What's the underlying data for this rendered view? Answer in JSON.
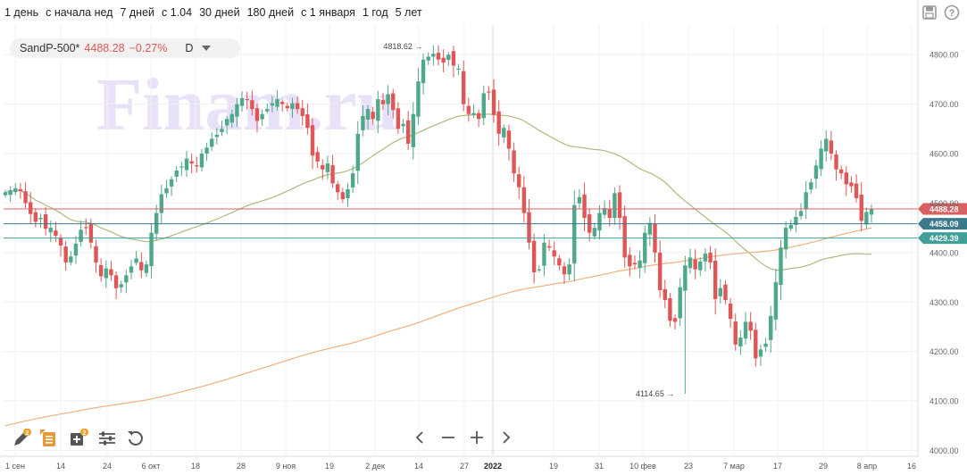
{
  "periods": [
    "1 день",
    "с начала нед",
    "7 дней",
    "с 1.04",
    "30 дней",
    "180 дней",
    "с 1 января",
    "1 год",
    "5 лет"
  ],
  "ticker": {
    "name": "SandP-500*",
    "price": "4488.28",
    "change": "−0.27%",
    "timeframe": "D"
  },
  "watermark": "Finam.ru",
  "icons": {
    "save": "save-icon",
    "help": "help-icon",
    "draw": "pencil-icon",
    "list": "list-icon",
    "add": "add-indicator-icon",
    "settings": "sliders-icon",
    "reset": "reset-icon",
    "prev": "chevron-left-icon",
    "zoom_out": "minus-icon",
    "zoom_in": "plus-icon",
    "next": "chevron-right-icon"
  },
  "badges": {
    "draw": "2",
    "add": "2"
  },
  "colors": {
    "up": "#4fa88a",
    "down": "#e05656",
    "ma_slow": "#f0b080",
    "ma_fast": "#a8bc82",
    "line_last": "#d86060",
    "line_a": "#3a7a8c",
    "line_b": "#40a098"
  },
  "chart_data": {
    "type": "candlestick",
    "title": "SandP-500*",
    "timeframe": "D",
    "ylim": [
      3990,
      4860
    ],
    "x_tick_labels": [
      "1 сен",
      "14",
      "24",
      "6 окт",
      "18",
      "28",
      "9 ноя",
      "19",
      "2 дек",
      "14",
      "27",
      "2022",
      "19",
      "31",
      "10 фев",
      "23",
      "7 мар",
      "17",
      "29",
      "8 апр",
      "16"
    ],
    "y_tick_labels": [
      "4000.00",
      "4100.00",
      "4200.00",
      "4300.00",
      "4400.00",
      "4500.00",
      "4600.00",
      "4700.00",
      "4800.00"
    ],
    "annotations": [
      {
        "text": "4818.62",
        "type": "max",
        "value": 4818.62
      },
      {
        "text": "4114.65",
        "type": "min",
        "value": 4114.65
      }
    ],
    "price_lines": [
      {
        "value": 4488.28,
        "label": "4488.28",
        "color": "#d86060"
      },
      {
        "value": 4458.09,
        "label": "4458.09",
        "color": "#3a7a8c"
      },
      {
        "value": 4429.39,
        "label": "4429.39",
        "color": "#40a098"
      }
    ],
    "closes": [
      4522,
      4526,
      4530,
      4524,
      4500,
      4478,
      4462,
      4470,
      4448,
      4450,
      4434,
      4414,
      4380,
      4392,
      4418,
      4446,
      4450,
      4420,
      4380,
      4352,
      4368,
      4354,
      4328,
      4336,
      4354,
      4372,
      4388,
      4364,
      4376,
      4440,
      4480,
      4518,
      4530,
      4548,
      4566,
      4574,
      4590,
      4580,
      4574,
      4600,
      4612,
      4630,
      4638,
      4650,
      4670,
      4680,
      4700,
      4712,
      4708,
      4690,
      4666,
      4680,
      4690,
      4702,
      4710,
      4700,
      4692,
      4702,
      4690,
      4676,
      4652,
      4596,
      4584,
      4568,
      4580,
      4540,
      4522,
      4508,
      4528,
      4560,
      4640,
      4676,
      4690,
      4670,
      4710,
      4700,
      4720,
      4688,
      4650,
      4660,
      4620,
      4680,
      4746,
      4790,
      4796,
      4802,
      4790,
      4784,
      4800,
      4778,
      4772,
      4700,
      4680,
      4682,
      4670,
      4722,
      4724,
      4678,
      4640,
      4652,
      4610,
      4560,
      4532,
      4480,
      4420,
      4360,
      4366,
      4420,
      4410,
      4392,
      4374,
      4356,
      4376,
      4496,
      4512,
      4470,
      4440,
      4450,
      4480,
      4490,
      4470,
      4520,
      4470,
      4390,
      4372,
      4376,
      4384,
      4440,
      4460,
      4400,
      4324,
      4304,
      4262,
      4260,
      4330,
      4374,
      4390,
      4366,
      4382,
      4398,
      4380,
      4306,
      4328,
      4304,
      4266,
      4214,
      4228,
      4260,
      4242,
      4186,
      4204,
      4216,
      4272,
      4340,
      4410,
      4450,
      4456,
      4472,
      4484,
      4522,
      4542,
      4576,
      4610,
      4630,
      4600,
      4568,
      4560,
      4538,
      4534,
      4510,
      4464,
      4482,
      4488
    ]
  }
}
